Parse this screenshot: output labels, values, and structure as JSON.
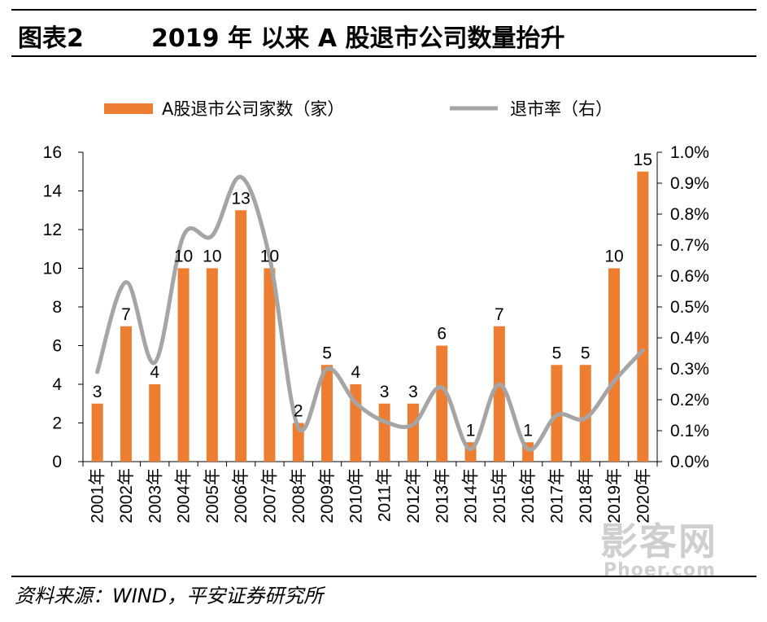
{
  "header": {
    "figure_label": "图表2",
    "title": "2019 年 以来 A 股退市公司数量抬升"
  },
  "footer": {
    "source": "资料来源：WIND，平安证券研究所"
  },
  "watermark": {
    "main": "影客网",
    "sub": "Phoer.com"
  },
  "colors": {
    "bar": "#ED7D31",
    "line": "#A5A5A5",
    "axis": "#000000"
  },
  "chart_data": {
    "type": "bar",
    "title": "2019 年 以来 A 股退市公司数量抬升",
    "categories": [
      "2001年",
      "2002年",
      "2003年",
      "2004年",
      "2005年",
      "2006年",
      "2007年",
      "2008年",
      "2009年",
      "2010年",
      "2011年",
      "2012年",
      "2013年",
      "2014年",
      "2015年",
      "2016年",
      "2017年",
      "2018年",
      "2019年",
      "2020年"
    ],
    "series": [
      {
        "name": "A股退市公司家数（家）",
        "type": "bar",
        "axis": "left",
        "values": [
          3,
          7,
          4,
          10,
          10,
          13,
          10,
          2,
          5,
          4,
          3,
          3,
          6,
          1,
          7,
          1,
          5,
          5,
          10,
          15
        ],
        "data_labels": [
          "3",
          "7",
          "4",
          "10",
          "10",
          "13",
          "10",
          "2",
          "5",
          "4",
          "3",
          "3",
          "6",
          "1",
          "7",
          "1",
          "5",
          "5",
          "10",
          "15"
        ]
      },
      {
        "name": "退市率（右）",
        "type": "line",
        "axis": "right",
        "values": [
          0.29,
          0.58,
          0.32,
          0.73,
          0.73,
          0.92,
          0.66,
          0.11,
          0.3,
          0.19,
          0.13,
          0.12,
          0.24,
          0.04,
          0.25,
          0.04,
          0.15,
          0.14,
          0.26,
          0.36
        ]
      }
    ],
    "y_left": {
      "min": 0,
      "max": 16,
      "ticks": [
        0,
        2,
        4,
        6,
        8,
        10,
        12,
        14,
        16
      ],
      "tick_labels": [
        "0",
        "2",
        "4",
        "6",
        "8",
        "10",
        "12",
        "14",
        "16"
      ]
    },
    "y_right": {
      "min": 0,
      "max": 1.0,
      "ticks": [
        0,
        0.1,
        0.2,
        0.3,
        0.4,
        0.5,
        0.6,
        0.7,
        0.8,
        0.9,
        1.0
      ],
      "tick_labels": [
        "0.0%",
        "0.1%",
        "0.2%",
        "0.3%",
        "0.4%",
        "0.5%",
        "0.6%",
        "0.7%",
        "0.8%",
        "0.9%",
        "1.0%"
      ]
    },
    "legend": {
      "position": "top",
      "entries": [
        "A股退市公司家数（家）",
        "退市率（右）"
      ]
    },
    "grid": false
  }
}
